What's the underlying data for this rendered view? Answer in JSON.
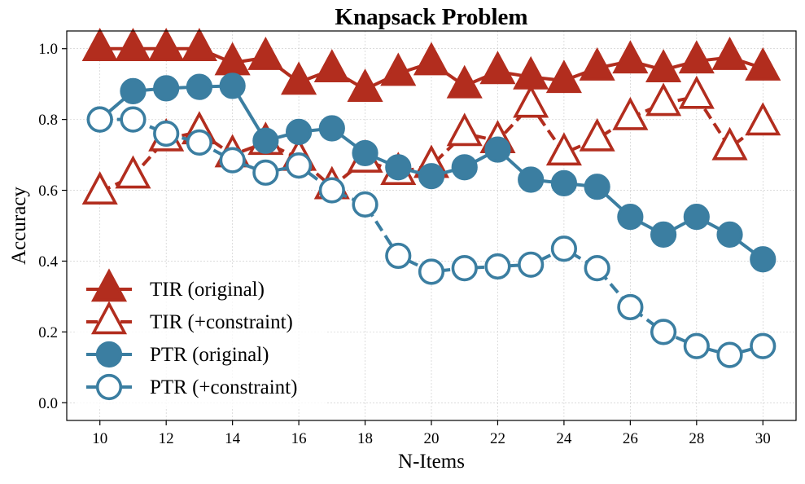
{
  "chart_data": {
    "type": "line",
    "title": "Knapsack Problem",
    "xlabel": "N-Items",
    "ylabel": "Accuracy",
    "xlim": [
      9,
      31
    ],
    "ylim": [
      -0.05,
      1.05
    ],
    "xticks": [
      10,
      12,
      14,
      16,
      18,
      20,
      22,
      24,
      26,
      28,
      30
    ],
    "yticks": [
      0.0,
      0.2,
      0.4,
      0.6,
      0.8,
      1.0
    ],
    "ytick_labels": [
      "0.0",
      "0.2",
      "0.4",
      "0.6",
      "0.8",
      "1.0"
    ],
    "grid": true,
    "legend_position": "lower-left",
    "x": [
      10,
      11,
      12,
      13,
      14,
      15,
      16,
      17,
      18,
      19,
      20,
      21,
      22,
      23,
      24,
      25,
      26,
      27,
      28,
      29,
      30
    ],
    "series": [
      {
        "name": "TIR  (original)",
        "color": "#b22d1e",
        "marker": "triangle",
        "filled": true,
        "dashed": false,
        "values": [
          1.0,
          1.0,
          1.0,
          1.0,
          0.96,
          0.975,
          0.905,
          0.94,
          0.885,
          0.93,
          0.96,
          0.895,
          0.935,
          0.92,
          0.91,
          0.945,
          0.965,
          0.94,
          0.965,
          0.975,
          0.945
        ]
      },
      {
        "name": "TIR  (+constraint)",
        "color": "#b22d1e",
        "marker": "triangle",
        "filled": false,
        "dashed": true,
        "values": [
          0.595,
          0.64,
          0.745,
          0.765,
          0.7,
          0.735,
          0.69,
          0.61,
          0.685,
          0.65,
          0.67,
          0.76,
          0.74,
          0.84,
          0.705,
          0.745,
          0.805,
          0.845,
          0.865,
          0.72,
          0.79
        ]
      },
      {
        "name": "PTR (original)",
        "color": "#3b7ea1",
        "marker": "circle",
        "filled": true,
        "dashed": false,
        "values": [
          0.8,
          0.88,
          0.888,
          0.892,
          0.895,
          0.74,
          0.765,
          0.775,
          0.705,
          0.665,
          0.64,
          0.665,
          0.715,
          0.63,
          0.62,
          0.61,
          0.525,
          0.475,
          0.525,
          0.475,
          0.405
        ]
      },
      {
        "name": "PTR (+constraint)",
        "color": "#3b7ea1",
        "marker": "circle",
        "filled": false,
        "dashed": true,
        "values": [
          0.8,
          0.8,
          0.76,
          0.735,
          0.685,
          0.65,
          0.67,
          0.6,
          0.56,
          0.415,
          0.37,
          0.38,
          0.385,
          0.39,
          0.435,
          0.38,
          0.27,
          0.2,
          0.16,
          0.135,
          0.16
        ]
      }
    ]
  }
}
